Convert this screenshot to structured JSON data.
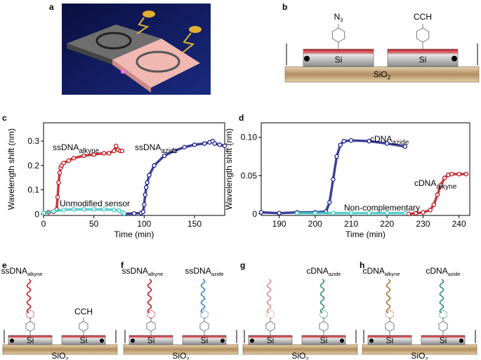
{
  "panel_labels": [
    "a",
    "b",
    "c",
    "d",
    "e",
    "f",
    "g",
    "h"
  ],
  "chart_data": [
    {
      "type": "scatter",
      "x_label": "Time (min)",
      "y_label": "Wavelength shift (nm)",
      "xlim": [
        0,
        180
      ],
      "xticks": [
        0,
        50,
        100,
        150
      ],
      "ylim": [
        -0.005,
        0.375
      ],
      "yticks": [
        0,
        0.1,
        0.2,
        0.3
      ],
      "series": [
        {
          "name": "ssDNA",
          "subscript": "alkyne",
          "color": "#c0141b",
          "x": [
            0,
            5,
            10,
            13,
            14,
            15,
            16,
            17,
            18,
            20,
            25,
            30,
            40,
            50,
            60,
            65,
            70,
            72,
            74,
            76,
            78
          ],
          "values": [
            0.005,
            0.008,
            0.01,
            0.02,
            0.07,
            0.13,
            0.17,
            0.19,
            0.2,
            0.21,
            0.22,
            0.23,
            0.24,
            0.245,
            0.25,
            0.25,
            0.26,
            0.28,
            0.265,
            0.26,
            0.26
          ]
        },
        {
          "name": "ssDNA",
          "subscript": "azide",
          "color": "#1b1f8a",
          "x": [
            80,
            90,
            97,
            99,
            100,
            101,
            102,
            103,
            105,
            110,
            120,
            130,
            140,
            150,
            160,
            165,
            168,
            170,
            175,
            180
          ],
          "values": [
            0.002,
            0.003,
            0.005,
            0.01,
            0.04,
            0.08,
            0.11,
            0.13,
            0.16,
            0.2,
            0.24,
            0.26,
            0.275,
            0.285,
            0.29,
            0.295,
            0.3,
            0.29,
            0.285,
            0.28
          ]
        },
        {
          "name": "Unmodified sensor",
          "color": "#3cc8c8",
          "x": [
            0,
            10,
            20,
            30,
            40,
            50,
            60,
            70,
            75,
            78,
            80
          ],
          "values": [
            0.005,
            0.012,
            0.018,
            0.02,
            0.02,
            0.02,
            0.02,
            0.018,
            0.015,
            0.008,
            0.003
          ]
        }
      ]
    },
    {
      "type": "scatter",
      "x_label": "Time (min)",
      "y_label": "Wavelength shift (nm)",
      "xlim": [
        185,
        243
      ],
      "xticks": [
        190,
        200,
        210,
        220,
        230,
        240
      ],
      "ylim": [
        -0.002,
        0.119
      ],
      "yticks": [
        0,
        0.05,
        {
          "value": 0.1,
          "label": "0.10"
        }
      ],
      "series": [
        {
          "name": "cDNA",
          "subscript": "azide",
          "color": "#1b1f8a",
          "x": [
            185,
            190,
            195,
            200,
            203,
            204,
            205,
            206,
            207,
            208,
            210,
            215,
            220,
            225
          ],
          "values": [
            0.002,
            0.001,
            0.002,
            0.002,
            0.003,
            0.015,
            0.045,
            0.075,
            0.09,
            0.095,
            0.096,
            0.095,
            0.092,
            0.088
          ]
        },
        {
          "name": "cDNA",
          "subscript": "alkyne",
          "color": "#c0141b",
          "x": [
            226,
            228,
            230,
            232,
            233,
            234,
            235,
            236,
            237,
            238,
            240,
            242
          ],
          "values": [
            0,
            0.001,
            0.002,
            0.005,
            0.012,
            0.025,
            0.038,
            0.047,
            0.051,
            0.052,
            0.052,
            0.052
          ]
        },
        {
          "name": "Non-complementary",
          "color": "#3cc8c8",
          "x": [
            195,
            200,
            205,
            210,
            215,
            220,
            225
          ],
          "values": [
            0.001,
            0.001,
            0.001,
            0.001,
            0.001,
            0.001,
            0.001
          ]
        }
      ]
    }
  ],
  "schematics": {
    "b": {
      "groups": [
        {
          "main": "N",
          "sub": "3"
        },
        "CCH"
      ],
      "chips": [
        "Si",
        "Si"
      ],
      "substrate": {
        "main": "SiO",
        "sub": "2"
      }
    },
    "e": {
      "groups": [
        {
          "main": "ssDNA",
          "sub": "alkyne"
        },
        "CCH"
      ],
      "chips": [
        "Si",
        "Si"
      ],
      "substrate": {
        "main": "SiO",
        "sub": "2"
      }
    },
    "f": {
      "groups": [
        {
          "main": "ssDNA",
          "sub": "alkyne"
        },
        {
          "main": "ssDNA",
          "sub": "azide"
        }
      ],
      "chips": [
        "Si",
        "Si"
      ],
      "substrate": {
        "main": "SiO",
        "sub": "2"
      }
    },
    "g": {
      "groups": [
        null,
        {
          "main": "cDNA",
          "sub": "azide"
        }
      ],
      "chips": [
        "Si",
        "Si"
      ],
      "substrate": {
        "main": "SiO",
        "sub": "2"
      }
    },
    "h": {
      "groups": [
        {
          "main": "cDNA",
          "sub": "alkyne"
        },
        {
          "main": "cDNA",
          "sub": "azide"
        }
      ],
      "chips": [
        "Si",
        "Si"
      ],
      "substrate": {
        "main": "SiO",
        "sub": "2"
      }
    }
  }
}
